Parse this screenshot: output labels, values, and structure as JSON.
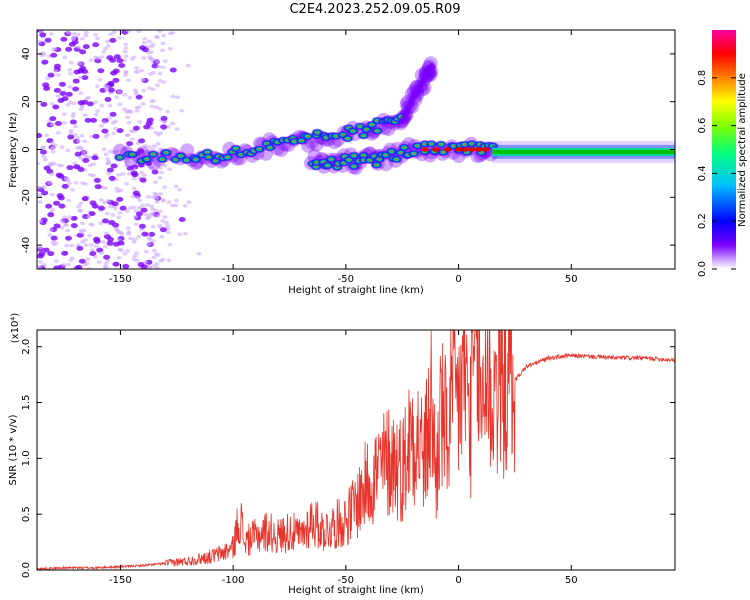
{
  "title": "C2E4.2023.252.09.05.R09",
  "colors": {
    "axis": "#000000",
    "snr_line": "#e8332a",
    "ridge_core": "#00c000",
    "ridge_peak": "#e00000",
    "scatter": "#7a00ff",
    "scatter_light": "#cfa8ff"
  },
  "chart_data": [
    {
      "type": "heatmap",
      "title": "C2E4.2023.252.09.05.R09",
      "xlabel": "Height of straight line (km)",
      "ylabel": "Frequency (Hz)",
      "xlim": [
        -187,
        96
      ],
      "ylim": [
        -50,
        50
      ],
      "xticks": [
        -150,
        -100,
        -50,
        0,
        50
      ],
      "xtick_labels": [
        "-150",
        "-100",
        "-50",
        "0",
        "50"
      ],
      "yticks": [
        -40,
        -20,
        0,
        20,
        40
      ],
      "ytick_labels": [
        "-40",
        "-20",
        "0",
        "20",
        "40"
      ],
      "colorbar": {
        "label": "Normalized spectral amplitude",
        "range": [
          0,
          1
        ],
        "ticks": [
          0.0,
          0.2,
          0.4,
          0.6,
          0.8
        ],
        "tick_labels": [
          "0.0",
          "0.2",
          "0.4",
          "0.6",
          "0.8"
        ],
        "colormap": [
          "#ffffff",
          "#7a00ff",
          "#0000ff",
          "#00bfff",
          "#00ff80",
          "#7fff00",
          "#ffff00",
          "#ff8000",
          "#ff0000",
          "#ff00a0"
        ]
      },
      "features": [
        {
          "name": "noise scatter",
          "x_range": [
            -187,
            -130
          ],
          "freq_range": [
            -50,
            50
          ],
          "amplitude": 0.05
        },
        {
          "name": "main ridge",
          "points": [
            [
              -150,
              -3
            ],
            [
              -120,
              -3
            ],
            [
              -100,
              -2
            ],
            [
              -80,
              2
            ],
            [
              -60,
              5
            ],
            [
              -40,
              8
            ],
            [
              -25,
              14
            ]
          ],
          "amplitude": 0.45
        },
        {
          "name": "lower branch",
          "points": [
            [
              -65,
              -5
            ],
            [
              -50,
              -5
            ],
            [
              -35,
              -4
            ],
            [
              -20,
              0
            ],
            [
              0,
              0
            ],
            [
              15,
              0
            ]
          ],
          "amplitude": 0.5
        },
        {
          "name": "upward tail",
          "points": [
            [
              -25,
              12
            ],
            [
              -20,
              22
            ],
            [
              -15,
              30
            ],
            [
              -12,
              35
            ]
          ],
          "amplitude": 0.15
        },
        {
          "name": "steady band",
          "points": [
            [
              15,
              -1
            ],
            [
              96,
              -1
            ]
          ],
          "amplitude": 0.5
        }
      ]
    },
    {
      "type": "line",
      "xlabel": "Height of straight line (km)",
      "ylabel": "SNR (10 * v/v)",
      "y_scale_label": "(x10⁴)",
      "xlim": [
        -187,
        96
      ],
      "ylim": [
        0,
        2.15
      ],
      "xticks": [
        -150,
        -100,
        -50,
        0,
        50
      ],
      "xtick_labels": [
        "-150",
        "-100",
        "-50",
        "0",
        "50"
      ],
      "yticks": [
        0.0,
        0.5,
        1.0,
        1.5,
        2.0
      ],
      "ytick_labels": [
        "0.0",
        "0.5",
        "1.0",
        "1.5",
        "2.0"
      ],
      "series": [
        {
          "name": "SNR",
          "x": [
            -187,
            -175,
            -160,
            -150,
            -140,
            -130,
            -120,
            -115,
            -110,
            -105,
            -100,
            -97,
            -95,
            -90,
            -85,
            -80,
            -75,
            -70,
            -65,
            -60,
            -55,
            -50,
            -45,
            -40,
            -35,
            -30,
            -25,
            -20,
            -15,
            -12,
            -10,
            -8,
            -5,
            -3,
            0,
            3,
            5,
            8,
            10,
            12,
            15,
            18,
            20,
            25,
            30,
            35,
            40,
            50,
            60,
            70,
            80,
            90,
            96
          ],
          "values": [
            0.01,
            0.02,
            0.02,
            0.03,
            0.04,
            0.06,
            0.08,
            0.1,
            0.12,
            0.15,
            0.2,
            0.5,
            0.25,
            0.3,
            0.35,
            0.3,
            0.35,
            0.3,
            0.45,
            0.35,
            0.4,
            0.45,
            0.6,
            0.8,
            0.9,
            1.0,
            0.9,
            1.3,
            1.0,
            1.5,
            0.8,
            1.4,
            1.2,
            1.5,
            1.5,
            1.8,
            1.3,
            2.1,
            1.4,
            1.9,
            1.5,
            1.8,
            1.75,
            1.7,
            1.82,
            1.86,
            1.9,
            1.92,
            1.91,
            1.9,
            1.9,
            1.89,
            1.88
          ]
        }
      ]
    }
  ]
}
